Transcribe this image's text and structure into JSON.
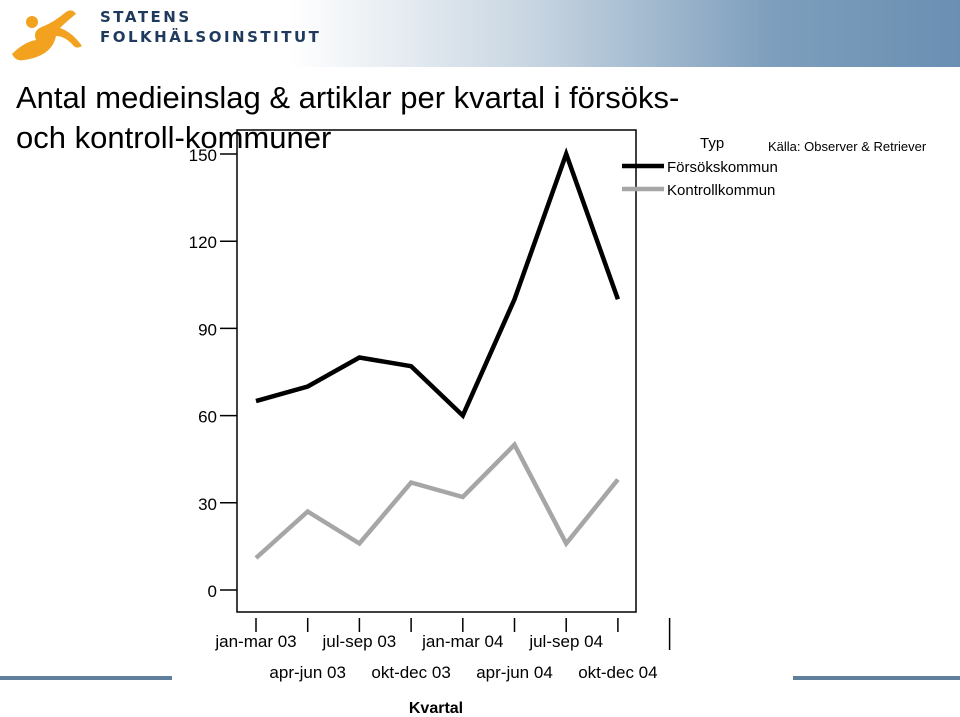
{
  "header": {
    "logo_line1": "STATENS",
    "logo_line2": "FOLKHÄLSOINSTITUT",
    "logo_icon": "leaping-figure-icon"
  },
  "slide": {
    "title": "Antal medieinslag & artiklar per kvartal i försöks- och kontroll-kommuner",
    "source": "Källa: Observer & Retriever"
  },
  "colors": {
    "series_forsok": "#000000",
    "series_kontroll": "#a6a6a6",
    "logo_orange": "#f2a21f",
    "banner_blue": "#6a8fb2"
  },
  "chart_data": {
    "type": "line",
    "title": "",
    "xlabel": "Kvartal",
    "ylabel": "",
    "ylim": [
      0,
      150
    ],
    "yticks": [
      0,
      30,
      60,
      90,
      120,
      150
    ],
    "grid": false,
    "legend_position": "top-right",
    "legend_title": "Typ",
    "categories": [
      "jan-mar 03",
      "apr-jun 03",
      "jul-sep 03",
      "okt-dec 03",
      "jan-mar 04",
      "apr-jun 04",
      "jul-sep 04",
      "okt-dec 04"
    ],
    "series": [
      {
        "name": "Försökskommun",
        "values": [
          65,
          70,
          80,
          77,
          60,
          100,
          150,
          100
        ]
      },
      {
        "name": "Kontrollkommun",
        "values": [
          11,
          27,
          16,
          37,
          32,
          50,
          16,
          38
        ]
      }
    ]
  }
}
